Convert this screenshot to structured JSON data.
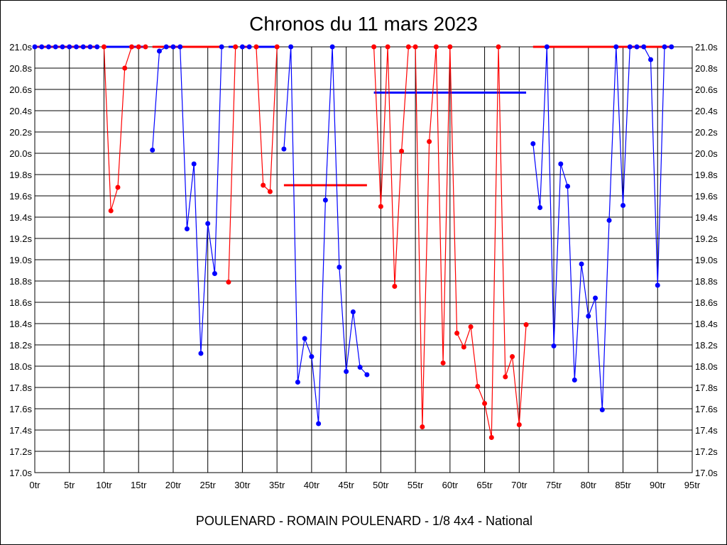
{
  "chart_data": {
    "type": "line",
    "title": "Chronos du 11 mars 2023",
    "xlabel": "POULENARD - ROMAIN POULENARD - 1/8 4x4 - National",
    "ylabel": "",
    "xlim": [
      0,
      95
    ],
    "ylim": [
      17.0,
      21.0
    ],
    "x_ticks": [
      0,
      5,
      10,
      15,
      20,
      25,
      30,
      35,
      40,
      45,
      50,
      55,
      60,
      65,
      70,
      75,
      80,
      85,
      90,
      95
    ],
    "x_tick_suffix": "tr",
    "y_ticks": [
      17.0,
      17.2,
      17.4,
      17.6,
      17.8,
      18.0,
      18.2,
      18.4,
      18.6,
      18.8,
      19.0,
      19.2,
      19.4,
      19.6,
      19.8,
      20.0,
      20.2,
      20.4,
      20.6,
      20.8,
      21.0
    ],
    "y_tick_suffix": "s",
    "grid": true,
    "colors": {
      "blue": "#0000ff",
      "red": "#ff0000"
    },
    "stints": [
      {
        "color": "blue",
        "start_lap": 0,
        "average": 21.0,
        "values": [
          21.0,
          21.0,
          21.0,
          21.0,
          21.0,
          21.0,
          21.0,
          21.0,
          21.0,
          21.0
        ]
      },
      {
        "color": "red",
        "start_lap": 10,
        "average": 21.0,
        "values": [
          21.0,
          19.46,
          19.68,
          20.8,
          21.0,
          21.0,
          21.0
        ]
      },
      {
        "color": "blue",
        "start_lap": 17,
        "average": 21.0,
        "values": [
          20.03,
          20.96,
          21.0,
          21.0,
          21.0,
          19.29,
          19.9,
          18.12,
          19.34,
          18.87,
          21.0
        ]
      },
      {
        "color": "red",
        "start_lap": 28,
        "average": 21.0,
        "values": [
          18.79,
          21.0
        ]
      },
      {
        "color": "blue",
        "start_lap": 30,
        "average": 21.0,
        "values": [
          21.0,
          21.0
        ]
      },
      {
        "color": "red",
        "start_lap": 32,
        "average": 21.0,
        "values": [
          21.0,
          19.7,
          19.64,
          21.0
        ]
      },
      {
        "color": "blue",
        "start_lap": 36,
        "average": 19.7,
        "values": [
          20.04,
          21.0,
          17.85,
          18.26,
          18.09,
          17.46,
          19.56,
          21.0,
          18.93,
          17.95,
          18.51,
          17.99,
          17.92
        ]
      },
      {
        "color": "red",
        "start_lap": 49,
        "average": 20.57,
        "values": [
          21.0,
          19.5,
          21.0,
          18.75,
          20.02,
          21.0,
          21.0,
          17.43,
          20.11,
          21.0,
          18.03,
          21.0,
          18.31,
          18.18,
          18.37,
          17.81,
          17.65,
          17.33,
          21.0,
          17.9,
          18.09,
          17.45,
          18.39
        ]
      },
      {
        "color": "blue",
        "start_lap": 72,
        "average": 21.0,
        "values": [
          20.09,
          19.49,
          21.0,
          18.19,
          19.9,
          19.69,
          17.87,
          18.96,
          18.47,
          18.64,
          17.59,
          19.37,
          21.0,
          19.51,
          21.0,
          21.0,
          21.0,
          20.88,
          18.76,
          21.0,
          21.0
        ]
      }
    ]
  }
}
